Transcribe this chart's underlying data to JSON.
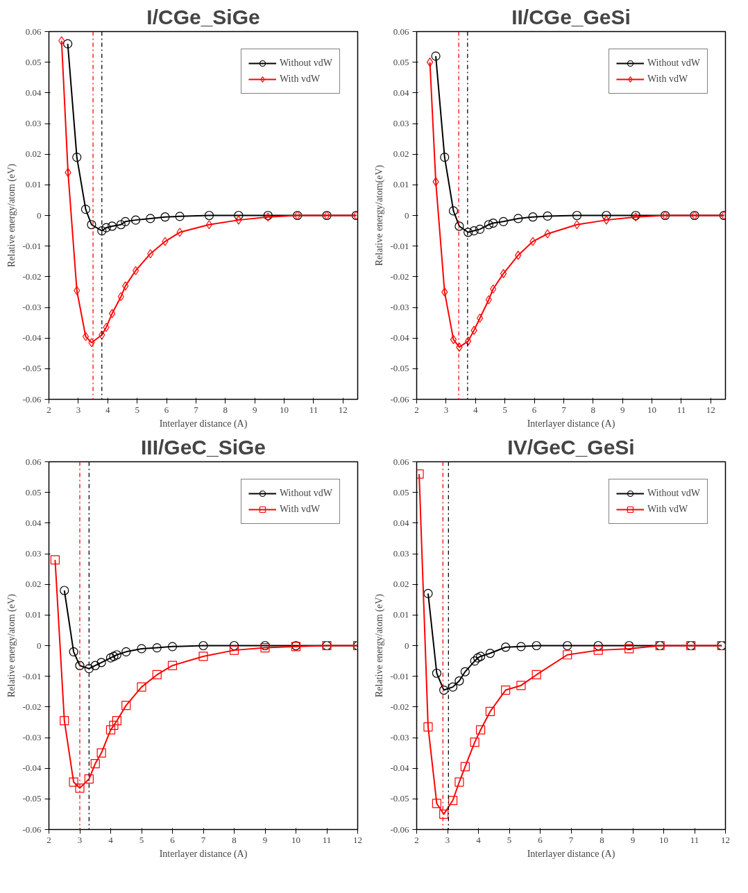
{
  "chart_data": [
    {
      "type": "line",
      "title": "I/CGe_SiGe",
      "xlabel": "Interlayer distance (A)",
      "ylabel": "Relative energy/atom (eV)",
      "xlim": [
        2,
        12.5
      ],
      "ylim": [
        -0.06,
        0.06
      ],
      "xticks": [
        2,
        3,
        4,
        5,
        6,
        7,
        8,
        9,
        10,
        11,
        12
      ],
      "yticks": [
        -0.06,
        -0.05,
        -0.04,
        -0.03,
        -0.02,
        -0.01,
        0,
        0.01,
        0.02,
        0.03,
        0.04,
        0.05,
        0.06
      ],
      "legend": "top right",
      "grid": false,
      "series": [
        {
          "name": "Without vdW",
          "color": "#000000",
          "marker": "circle",
          "x": [
            2.64,
            2.95,
            3.25,
            3.45,
            3.8,
            3.95,
            4.15,
            4.45,
            4.6,
            4.95,
            5.45,
            5.95,
            6.45,
            7.45,
            8.45,
            9.45,
            10.45,
            11.45,
            12.45
          ],
          "values": [
            0.056,
            0.019,
            0.002,
            -0.003,
            -0.005,
            -0.004,
            -0.0035,
            -0.003,
            -0.002,
            -0.0015,
            -0.001,
            -0.0005,
            -0.0003,
            0,
            0,
            0,
            0,
            0,
            0
          ]
        },
        {
          "name": "With vdW",
          "color": "#ff0000",
          "marker": "diamond",
          "x": [
            2.43,
            2.65,
            2.95,
            3.25,
            3.45,
            3.8,
            3.95,
            4.15,
            4.45,
            4.6,
            4.95,
            5.45,
            5.95,
            6.45,
            7.45,
            8.45,
            9.45,
            10.45,
            11.45,
            12.45
          ],
          "values": [
            0.057,
            0.014,
            -0.0245,
            -0.0395,
            -0.0415,
            -0.039,
            -0.0365,
            -0.032,
            -0.0265,
            -0.023,
            -0.018,
            -0.0125,
            -0.0085,
            -0.0055,
            -0.003,
            -0.0015,
            -0.0005,
            0,
            0,
            0
          ]
        }
      ],
      "ref_lines": [
        {
          "axis": "x",
          "value": 3.5,
          "color": "#ff0000",
          "line_style": "dashdot"
        },
        {
          "axis": "x",
          "value": 3.8,
          "color": "#000000",
          "line_style": "dashdot"
        }
      ]
    },
    {
      "type": "line",
      "title": "II/CGe_GeSi",
      "xlabel": "Interlayer distance (A)",
      "ylabel": "Relative energy/atom(eV)",
      "xlim": [
        2,
        12.5
      ],
      "ylim": [
        -0.06,
        0.06
      ],
      "xticks": [
        2,
        3,
        4,
        5,
        6,
        7,
        8,
        9,
        10,
        11,
        12
      ],
      "yticks": [
        -0.06,
        -0.05,
        -0.04,
        -0.03,
        -0.02,
        -0.01,
        0,
        0.01,
        0.02,
        0.03,
        0.04,
        0.05,
        0.06
      ],
      "legend": "top right",
      "grid": false,
      "series": [
        {
          "name": "Without vdW",
          "color": "#000000",
          "marker": "circle",
          "x": [
            2.65,
            2.95,
            3.25,
            3.45,
            3.75,
            3.95,
            4.15,
            4.45,
            4.6,
            4.95,
            5.45,
            5.95,
            6.45,
            7.45,
            8.45,
            9.45,
            10.45,
            11.45,
            12.45
          ],
          "values": [
            0.052,
            0.019,
            0.0015,
            -0.0035,
            -0.0055,
            -0.005,
            -0.0045,
            -0.003,
            -0.0025,
            -0.002,
            -0.001,
            -0.0005,
            -0.0002,
            0,
            0,
            0,
            0,
            0,
            0
          ]
        },
        {
          "name": "With vdW",
          "color": "#ff0000",
          "marker": "diamond",
          "x": [
            2.45,
            2.65,
            2.95,
            3.25,
            3.45,
            3.75,
            3.95,
            4.15,
            4.45,
            4.6,
            4.95,
            5.45,
            5.95,
            6.45,
            7.45,
            8.45,
            9.45,
            10.45,
            11.45,
            12.45
          ],
          "values": [
            0.05,
            0.011,
            -0.025,
            -0.0405,
            -0.043,
            -0.041,
            -0.0375,
            -0.0335,
            -0.0275,
            -0.024,
            -0.019,
            -0.013,
            -0.0085,
            -0.006,
            -0.003,
            -0.0015,
            -0.0005,
            0,
            0,
            0
          ]
        }
      ],
      "ref_lines": [
        {
          "axis": "x",
          "value": 3.43,
          "color": "#ff0000",
          "line_style": "dashdot"
        },
        {
          "axis": "x",
          "value": 3.73,
          "color": "#000000",
          "line_style": "dashdot"
        }
      ]
    },
    {
      "type": "line",
      "title": "III/GeC_SiGe",
      "xlabel": "Interlayer distance (A)",
      "ylabel": "Relative energy/atom (eV)",
      "xlim": [
        2,
        12
      ],
      "ylim": [
        -0.06,
        0.06
      ],
      "xticks": [
        2,
        3,
        4,
        5,
        6,
        7,
        8,
        9,
        10,
        11,
        12
      ],
      "yticks": [
        -0.06,
        -0.05,
        -0.04,
        -0.03,
        -0.02,
        -0.01,
        0,
        0.01,
        0.02,
        0.03,
        0.04,
        0.05,
        0.06
      ],
      "legend": "top right",
      "grid": false,
      "series": [
        {
          "name": "Without vdW",
          "color": "#000000",
          "marker": "circle",
          "x": [
            2.5,
            2.8,
            3.0,
            3.3,
            3.5,
            3.7,
            4.0,
            4.1,
            4.2,
            4.5,
            5.0,
            5.5,
            6.0,
            7,
            8,
            9,
            10,
            11,
            12
          ],
          "values": [
            0.018,
            -0.002,
            -0.0065,
            -0.0075,
            -0.0065,
            -0.0055,
            -0.004,
            -0.0035,
            -0.003,
            -0.002,
            -0.001,
            -0.0007,
            -0.0003,
            0,
            0,
            0,
            0,
            0,
            0
          ]
        },
        {
          "name": "With vdW",
          "color": "#ff0000",
          "marker": "square",
          "x": [
            2.2,
            2.5,
            2.8,
            3.0,
            3.3,
            3.5,
            3.7,
            4.0,
            4.1,
            4.2,
            4.5,
            5.0,
            5.5,
            6.0,
            7,
            8,
            9,
            10,
            11,
            12
          ],
          "values": [
            0.028,
            -0.0245,
            -0.0445,
            -0.0465,
            -0.0435,
            -0.0385,
            -0.035,
            -0.0275,
            -0.026,
            -0.0245,
            -0.0195,
            -0.0135,
            -0.0095,
            -0.0065,
            -0.0035,
            -0.0015,
            -0.0007,
            -0.0003,
            0,
            0
          ]
        }
      ],
      "ref_lines": [
        {
          "axis": "x",
          "value": 3.0,
          "color": "#ff0000",
          "line_style": "dashdot"
        },
        {
          "axis": "x",
          "value": 3.3,
          "color": "#000000",
          "line_style": "dashdot"
        }
      ]
    },
    {
      "type": "line",
      "title": "IV/GeC_GeSi",
      "xlabel": "Interlayer distance (A)",
      "ylabel": "Relative energy/atom (eV)",
      "xlim": [
        2,
        12
      ],
      "ylim": [
        -0.06,
        0.06
      ],
      "xticks": [
        2,
        3,
        4,
        5,
        6,
        7,
        8,
        9,
        10,
        11,
        12
      ],
      "yticks": [
        -0.06,
        -0.05,
        -0.04,
        -0.03,
        -0.02,
        -0.01,
        0,
        0.01,
        0.02,
        0.03,
        0.04,
        0.05,
        0.06
      ],
      "legend": "top right",
      "grid": false,
      "series": [
        {
          "name": "Without vdW",
          "color": "#000000",
          "marker": "circle",
          "x": [
            2.37,
            2.65,
            2.88,
            3.17,
            3.38,
            3.57,
            3.88,
            3.98,
            4.07,
            4.38,
            4.88,
            5.38,
            5.88,
            6.88,
            7.88,
            8.88,
            9.88,
            10.88,
            11.88
          ],
          "values": [
            0.017,
            -0.009,
            -0.0145,
            -0.0135,
            -0.0115,
            -0.0085,
            -0.005,
            -0.004,
            -0.0035,
            -0.0025,
            -0.0005,
            -0.0003,
            0,
            0,
            0,
            0,
            0,
            0,
            0
          ]
        },
        {
          "name": "With vdW",
          "color": "#ff0000",
          "marker": "square",
          "x": [
            2.08,
            2.37,
            2.65,
            2.88,
            3.17,
            3.38,
            3.57,
            3.88,
            4.07,
            4.38,
            4.88,
            5.38,
            5.88,
            6.88,
            7.88,
            8.88,
            9.88,
            10.88,
            11.88
          ],
          "values": [
            0.056,
            -0.0265,
            -0.0515,
            -0.055,
            -0.0505,
            -0.0445,
            -0.0395,
            -0.0315,
            -0.0275,
            -0.0215,
            -0.0145,
            -0.013,
            -0.0095,
            -0.003,
            -0.0015,
            -0.001,
            0,
            0,
            0
          ]
        }
      ],
      "ref_lines": [
        {
          "axis": "x",
          "value": 2.85,
          "color": "#ff0000",
          "line_style": "dashdot"
        },
        {
          "axis": "x",
          "value": 3.03,
          "color": "#000000",
          "line_style": "dashdot"
        }
      ]
    }
  ]
}
